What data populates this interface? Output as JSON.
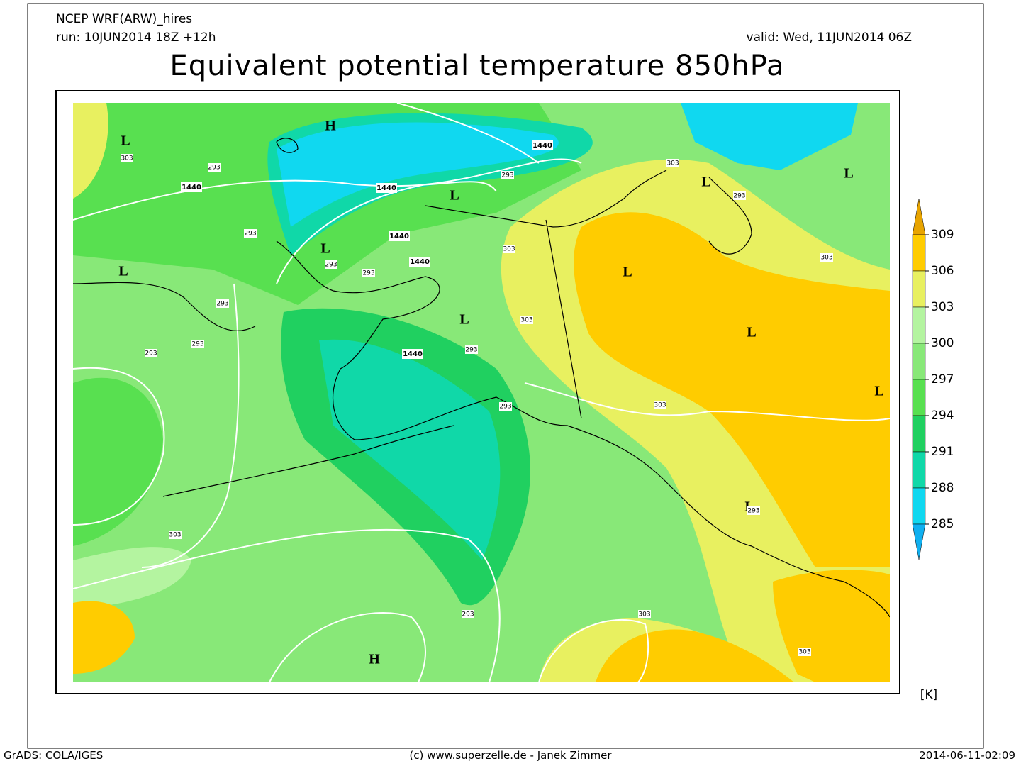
{
  "header": {
    "model": "NCEP WRF(ARW)_hires",
    "run": "run: 10JUN2014 18Z +12h",
    "valid": "valid: Wed, 11JUN2014 06Z",
    "title": "Equivalent potential temperature 850hPa"
  },
  "map": {
    "pressure_centers": [
      "L",
      "L",
      "L",
      "L",
      "L",
      "L",
      "L",
      "L",
      "L",
      "L",
      "L",
      "H",
      "H"
    ],
    "height_labels": [
      "1440",
      "1440",
      "1440",
      "1440",
      "1440",
      "1440"
    ],
    "contour_labels": [
      "293",
      "293",
      "293",
      "293",
      "293",
      "293",
      "293",
      "293",
      "293",
      "293",
      "293",
      "293",
      "293",
      "303",
      "303",
      "303",
      "303",
      "303",
      "303",
      "303",
      "303",
      "303"
    ]
  },
  "colorbar": {
    "ticks": [
      "309",
      "306",
      "303",
      "300",
      "297",
      "294",
      "291",
      "288",
      "285"
    ],
    "colors": [
      "#e8a400",
      "#ffcc00",
      "#e8f060",
      "#b4f4a0",
      "#88e878",
      "#58e050",
      "#20d060",
      "#10d8a8",
      "#10d8f0",
      "#10b0f0"
    ],
    "unit": "[K]"
  },
  "footer": {
    "left": "GrADS: COLA/IGES",
    "center": "(c) www.superzelle.de - Janek Zimmer",
    "right": "2014-06-11-02:09"
  }
}
